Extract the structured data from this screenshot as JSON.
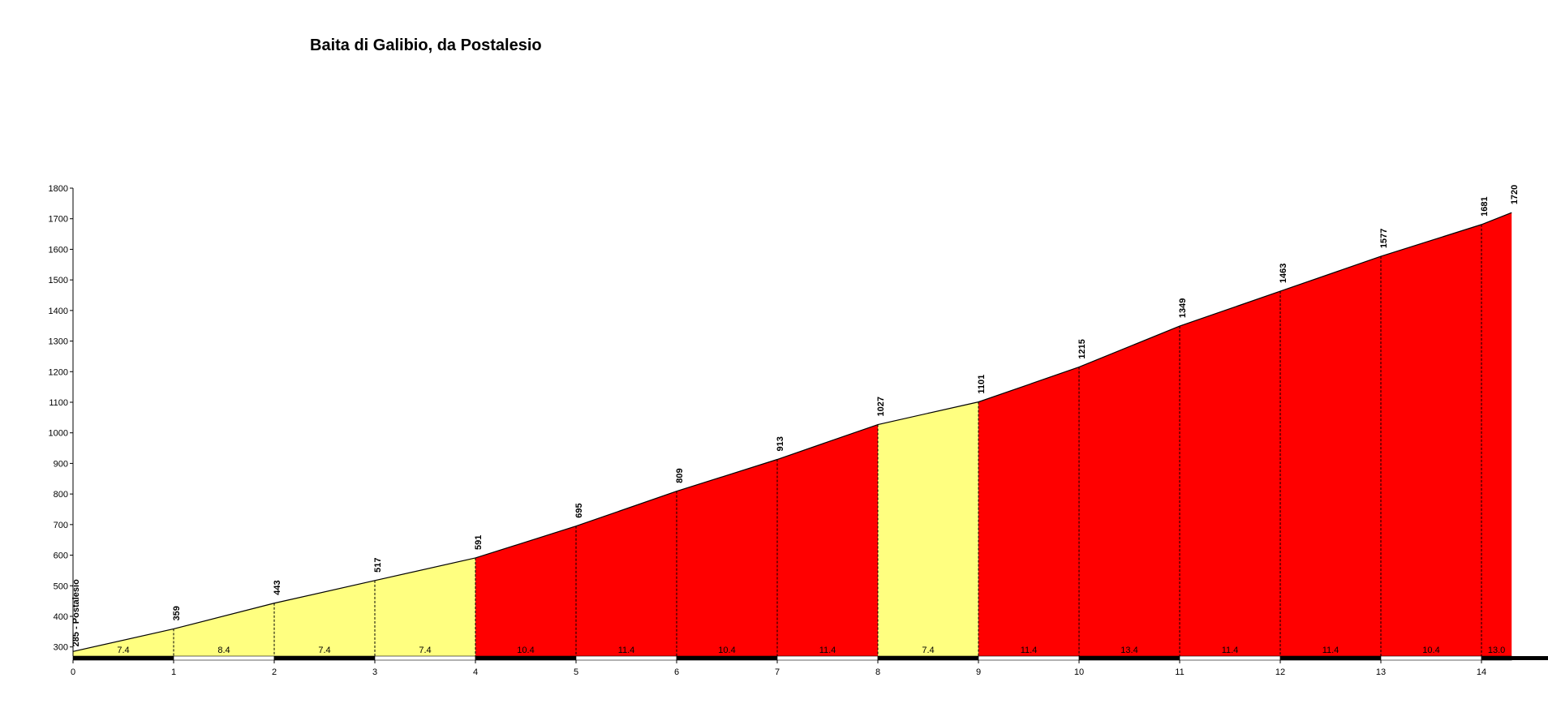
{
  "chart_data": {
    "type": "area",
    "title": "Baita di Galibio, da Postalesio",
    "xlabel": "",
    "ylabel": "",
    "xlim": [
      0,
      14.3
    ],
    "ylim": [
      270,
      1800
    ],
    "x_ticks": [
      0,
      1,
      2,
      3,
      4,
      5,
      6,
      7,
      8,
      9,
      10,
      11,
      12,
      13,
      14
    ],
    "y_ticks": [
      300,
      400,
      500,
      600,
      700,
      800,
      900,
      1000,
      1100,
      1200,
      1300,
      1400,
      1500,
      1600,
      1700,
      1800
    ],
    "start_label": "285 - Postalesio",
    "points": [
      {
        "x": 0,
        "y": 285,
        "label": "285 - Postalesio"
      },
      {
        "x": 1,
        "y": 359,
        "label": "359"
      },
      {
        "x": 2,
        "y": 443,
        "label": "443"
      },
      {
        "x": 3,
        "y": 517,
        "label": "517"
      },
      {
        "x": 4,
        "y": 591,
        "label": "591"
      },
      {
        "x": 5,
        "y": 695,
        "label": "695"
      },
      {
        "x": 6,
        "y": 809,
        "label": "809"
      },
      {
        "x": 7,
        "y": 913,
        "label": "913"
      },
      {
        "x": 8,
        "y": 1027,
        "label": "1027"
      },
      {
        "x": 9,
        "y": 1101,
        "label": "1101"
      },
      {
        "x": 10,
        "y": 1215,
        "label": "1215"
      },
      {
        "x": 11,
        "y": 1349,
        "label": "1349"
      },
      {
        "x": 12,
        "y": 1463,
        "label": "1463"
      },
      {
        "x": 13,
        "y": 1577,
        "label": "1577"
      },
      {
        "x": 14,
        "y": 1681,
        "label": "1681"
      },
      {
        "x": 14.3,
        "y": 1720,
        "label": "1720"
      }
    ],
    "segments": [
      {
        "from": 0,
        "to": 1,
        "gradient": "7.4",
        "color": "#ffff80"
      },
      {
        "from": 1,
        "to": 2,
        "gradient": "8.4",
        "color": "#ffff80"
      },
      {
        "from": 2,
        "to": 3,
        "gradient": "7.4",
        "color": "#ffff80"
      },
      {
        "from": 3,
        "to": 4,
        "gradient": "7.4",
        "color": "#ffff80"
      },
      {
        "from": 4,
        "to": 5,
        "gradient": "10.4",
        "color": "#ff0000"
      },
      {
        "from": 5,
        "to": 6,
        "gradient": "11.4",
        "color": "#ff0000"
      },
      {
        "from": 6,
        "to": 7,
        "gradient": "10.4",
        "color": "#ff0000"
      },
      {
        "from": 7,
        "to": 8,
        "gradient": "11.4",
        "color": "#ff0000"
      },
      {
        "from": 8,
        "to": 9,
        "gradient": "7.4",
        "color": "#ffff80"
      },
      {
        "from": 9,
        "to": 10,
        "gradient": "11.4",
        "color": "#ff0000"
      },
      {
        "from": 10,
        "to": 11,
        "gradient": "13.4",
        "color": "#ff0000"
      },
      {
        "from": 11,
        "to": 12,
        "gradient": "11.4",
        "color": "#ff0000"
      },
      {
        "from": 12,
        "to": 13,
        "gradient": "11.4",
        "color": "#ff0000"
      },
      {
        "from": 13,
        "to": 14,
        "gradient": "10.4",
        "color": "#ff0000"
      },
      {
        "from": 14,
        "to": 14.3,
        "gradient": "13.0",
        "color": "#ff0000"
      }
    ],
    "grid": false,
    "legend": "none"
  }
}
